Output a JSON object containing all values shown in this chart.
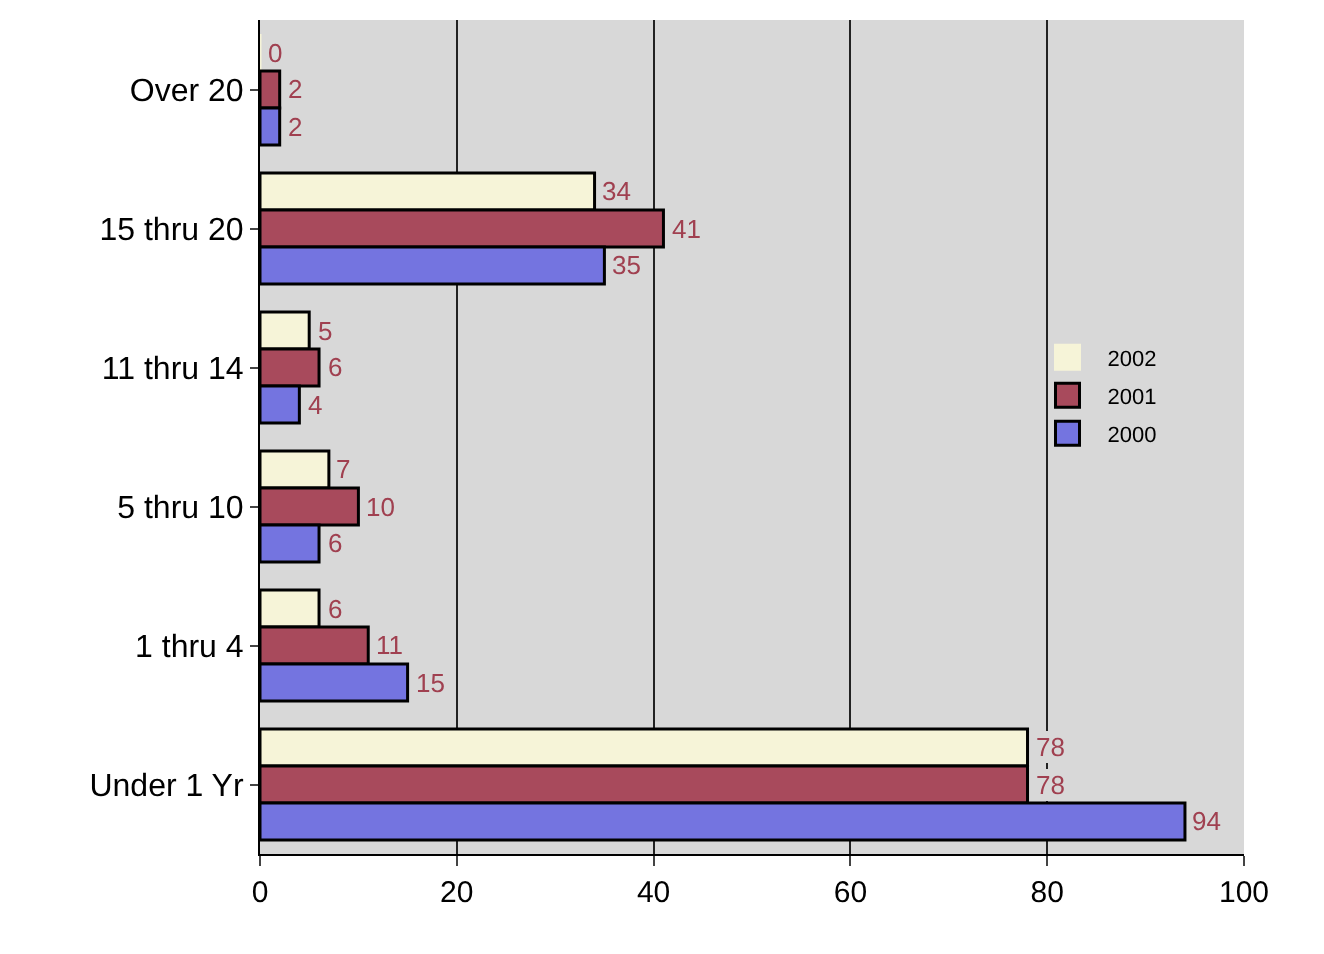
{
  "chart_data": {
    "type": "bar",
    "orientation": "horizontal",
    "categories": [
      "Over 20",
      "15 thru 20",
      "11 thru 14",
      "5 thru 10",
      "1 thru 4",
      "Under 1 Yr"
    ],
    "series": [
      {
        "name": "2002",
        "color": "#f6f4d8",
        "values": [
          0,
          34,
          5,
          7,
          6,
          78
        ]
      },
      {
        "name": "2001",
        "color": "#a84a5c",
        "values": [
          2,
          41,
          6,
          10,
          11,
          78
        ]
      },
      {
        "name": "2000",
        "color": "#7474e0",
        "values": [
          2,
          35,
          4,
          6,
          15,
          94
        ]
      }
    ],
    "xlim": [
      0,
      100
    ],
    "xticks": [
      0,
      20,
      40,
      60,
      80,
      100
    ],
    "grid": "x",
    "legend": "right",
    "data_labels": true
  }
}
